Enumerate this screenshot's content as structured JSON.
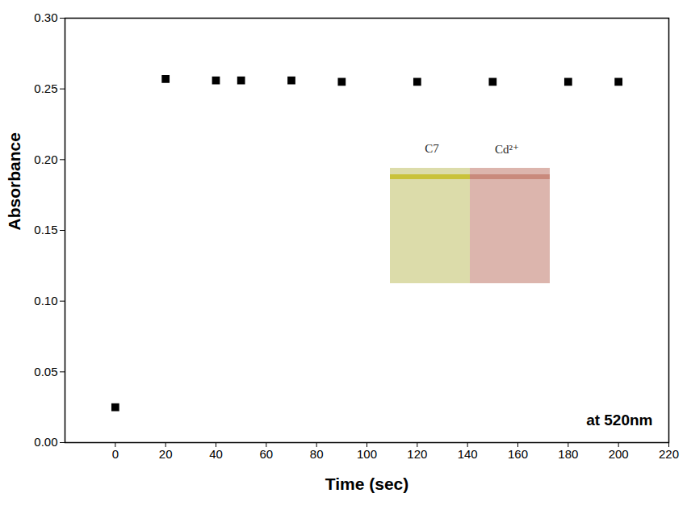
{
  "chart_data": {
    "type": "scatter",
    "x_label": "Time (sec)",
    "y_label": "Absorbance",
    "annotation": "at 520nm",
    "inset_labels": [
      "C7",
      "Cd²⁺"
    ],
    "x": [
      0,
      20,
      40,
      50,
      70,
      90,
      120,
      150,
      180,
      200
    ],
    "values": [
      0.025,
      0.257,
      0.256,
      0.256,
      0.256,
      0.255,
      0.255,
      0.255,
      0.255,
      0.255
    ],
    "color": "#000000",
    "marker": "square",
    "xlim": [
      -20,
      220
    ],
    "xticks": [
      0,
      20,
      40,
      60,
      80,
      100,
      120,
      140,
      160,
      180,
      200,
      220
    ],
    "ylim": [
      0,
      0.3
    ],
    "yticks": [
      {
        "value": 0,
        "label": "0.00"
      },
      {
        "value": 0.05,
        "label": "0.05"
      },
      {
        "value": 0.1,
        "label": "0.10"
      },
      {
        "value": 0.15,
        "label": "0.15"
      },
      {
        "value": 0.2,
        "label": "0.20"
      },
      {
        "value": 0.25,
        "label": "0.25"
      },
      {
        "value": 0.3,
        "label": "0.30"
      }
    ],
    "grid": false
  }
}
